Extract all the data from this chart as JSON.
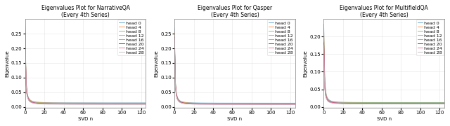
{
  "titles": [
    "Eigenvalues Plot for NarrativeQA\n(Every 4th Series)",
    "Eigenvalues Plot for Qasper\n(Every 4th Series)",
    "Eigenvalues Plot for MultifieldQA\n(Every 4th Series)"
  ],
  "xlabel": "SVD n",
  "ylabel": "Eigenvalue",
  "heads": [
    0,
    4,
    8,
    12,
    16,
    20,
    24,
    28
  ],
  "colors": [
    "#6baed6",
    "#fd8d3c",
    "#74c476",
    "#fc8d8d",
    "#9e9ac8",
    "#8b2020",
    "#f768a1",
    "#bdbdbd"
  ],
  "n_points": 128,
  "max_eigenvalues_plot1": [
    0.284,
    0.272,
    0.268,
    0.261,
    0.257,
    0.253,
    0.248,
    0.243
  ],
  "max_eigenvalues_plot2": [
    0.268,
    0.258,
    0.252,
    0.247,
    0.242,
    0.238,
    0.233,
    0.228
  ],
  "max_eigenvalues_plot3": [
    0.235,
    0.222,
    0.21,
    0.2,
    0.192,
    0.183,
    0.175,
    0.167
  ],
  "tail_values_plot1": [
    0.014,
    0.013,
    0.012,
    0.011,
    0.011,
    0.01,
    0.01,
    0.009
  ],
  "tail_values_plot2": [
    0.013,
    0.012,
    0.011,
    0.011,
    0.01,
    0.01,
    0.009,
    0.009
  ],
  "tail_values_plot3": [
    0.012,
    0.011,
    0.011,
    0.01,
    0.01,
    0.009,
    0.009,
    0.008
  ],
  "decay_power": 1.8,
  "ymaxs": [
    0.3,
    0.3,
    0.25
  ],
  "yticks_plot1": [
    0.0,
    0.05,
    0.1,
    0.15,
    0.2,
    0.25
  ],
  "yticks_plot2": [
    0.0,
    0.05,
    0.1,
    0.15,
    0.2,
    0.25
  ],
  "yticks_plot3": [
    0.0,
    0.05,
    0.1,
    0.15,
    0.2
  ],
  "xticks": [
    0,
    20,
    40,
    60,
    80,
    100,
    120
  ],
  "xlim": [
    0,
    125
  ],
  "figsize": [
    6.4,
    1.8
  ],
  "dpi": 100,
  "title_fontsize": 5.5,
  "label_fontsize": 5,
  "tick_fontsize": 5,
  "legend_fontsize": 4.5,
  "linewidth": 0.7
}
